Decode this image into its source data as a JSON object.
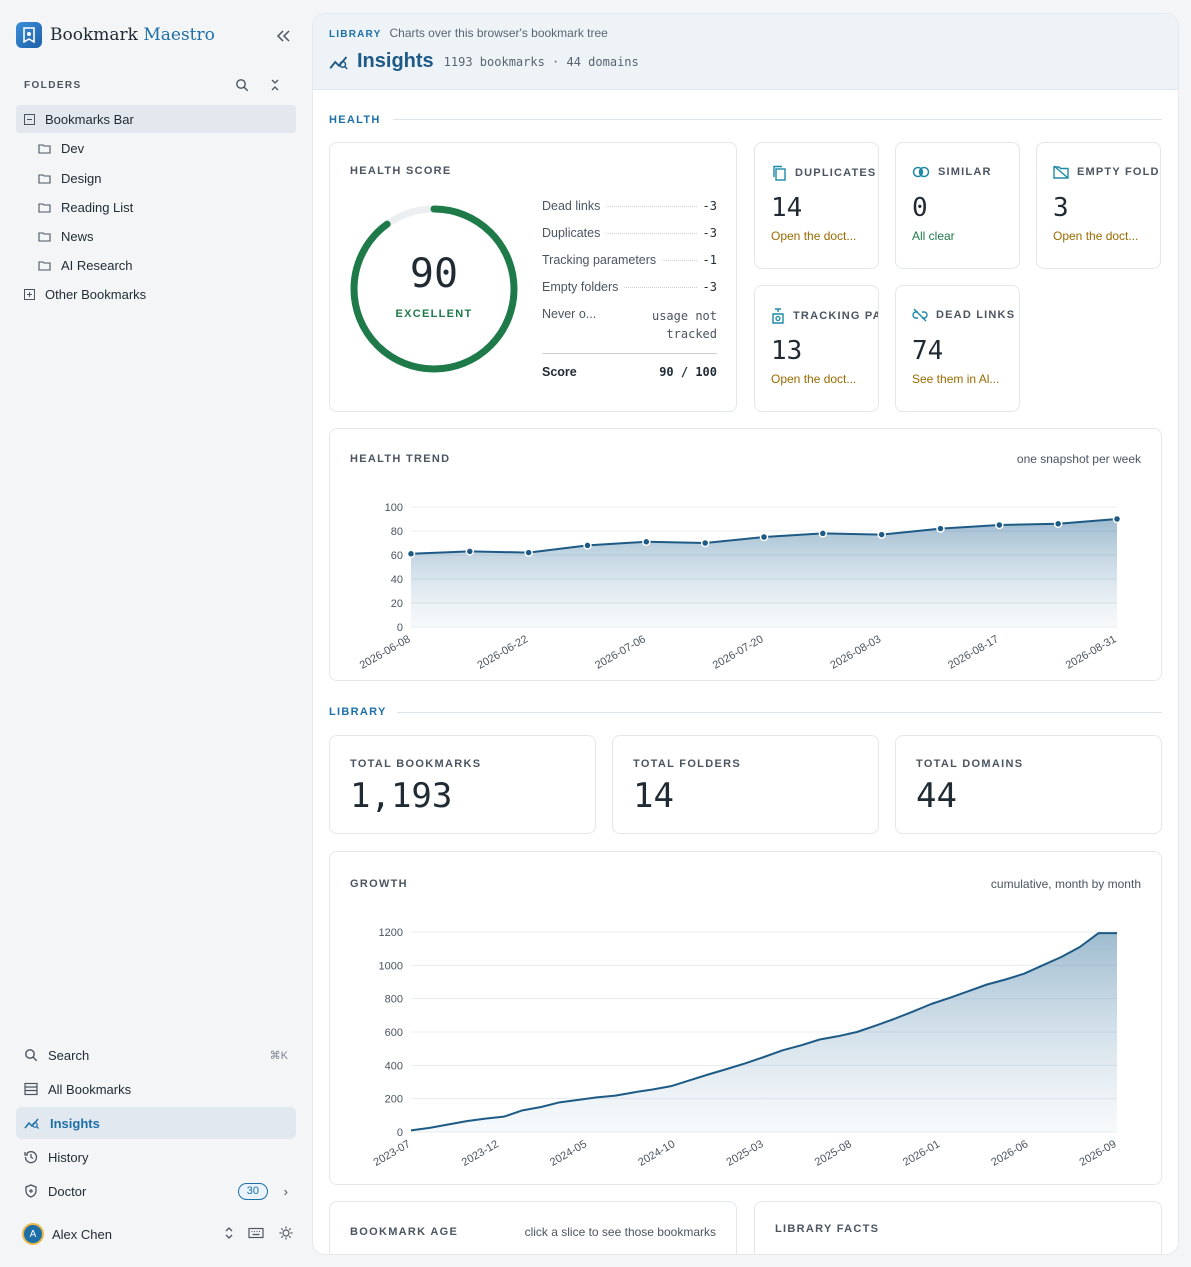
{
  "app": {
    "name_part1": "Bookmark",
    "name_part2": "Maestro"
  },
  "sidebar": {
    "folders_heading": "FOLDERS",
    "tree": [
      {
        "label": "Bookmarks Bar",
        "expanded": true,
        "children": [
          "Dev",
          "Design",
          "Reading List",
          "News",
          "AI Research"
        ]
      },
      {
        "label": "Other Bookmarks",
        "expanded": false
      }
    ],
    "nav": [
      {
        "label": "Search",
        "shortcut": "⌘K"
      },
      {
        "label": "All Bookmarks"
      },
      {
        "label": "Insights",
        "active": true
      },
      {
        "label": "History"
      },
      {
        "label": "Doctor",
        "badge": "30"
      }
    ],
    "user": {
      "initial": "A",
      "name": "Alex Chen"
    }
  },
  "header": {
    "section": "LIBRARY",
    "subtitle": "Charts over this browser's bookmark tree",
    "title": "Insights",
    "meta": "1193 bookmarks · 44 domains"
  },
  "health": {
    "section_title": "HEALTH",
    "score_card": {
      "label": "HEALTH SCORE",
      "score": "90",
      "score_fraction": 0.9,
      "rating": "EXCELLENT",
      "deductions": [
        {
          "name": "Dead links",
          "value": "-3"
        },
        {
          "name": "Duplicates",
          "value": "-3"
        },
        {
          "name": "Tracking parameters",
          "value": "-1"
        },
        {
          "name": "Empty folders",
          "value": "-3"
        }
      ],
      "never_label": "Never o...",
      "never_value_line1": "usage not",
      "never_value_line2": "tracked",
      "total_label": "Score",
      "total_value": "90 / 100"
    },
    "stats": [
      {
        "title": "DUPLICATES",
        "value": "14",
        "link": "Open the doct...",
        "link_color": "#9a6a00",
        "icon": "copy-icon"
      },
      {
        "title": "SIMILAR",
        "value": "0",
        "link": "All clear",
        "link_color": "#1f7a4a",
        "icon": "similar-icon"
      },
      {
        "title": "EMPTY FOLDERS",
        "value": "3",
        "link": "Open the doct...",
        "link_color": "#9a6a00",
        "icon": "empty-folder-icon"
      },
      {
        "title": "TRACKING PARAMS",
        "value": "13",
        "link": "Open the doct...",
        "link_color": "#9a6a00",
        "icon": "tracking-icon"
      },
      {
        "title": "DEAD LINKS",
        "value": "74",
        "link": "See them in Al...",
        "link_color": "#9a6a00",
        "icon": "dead-link-icon"
      }
    ],
    "trend_label": "HEALTH TREND",
    "trend_note": "one snapshot per week"
  },
  "library": {
    "section_title": "LIBRARY",
    "totals": [
      {
        "label": "TOTAL BOOKMARKS",
        "value": "1,193"
      },
      {
        "label": "TOTAL FOLDERS",
        "value": "14"
      },
      {
        "label": "TOTAL DOMAINS",
        "value": "44"
      }
    ],
    "growth_label": "GROWTH",
    "growth_note": "cumulative, month by month",
    "age_label": "BOOKMARK AGE",
    "age_note": "click a slice to see those bookmarks",
    "facts_label": "LIBRARY FACTS"
  },
  "colors": {
    "accent": "#1d6fa8",
    "line": "#1d5a85",
    "good": "#1f7a4a",
    "warn": "#9a6a00"
  },
  "chart_data": [
    {
      "type": "area",
      "title": "HEALTH TREND",
      "x": [
        "2026-06-08",
        "2026-06-15",
        "2026-06-22",
        "2026-06-29",
        "2026-07-06",
        "2026-07-13",
        "2026-07-20",
        "2026-07-27",
        "2026-08-03",
        "2026-08-10",
        "2026-08-17",
        "2026-08-24",
        "2026-08-31"
      ],
      "x_tick_labels": [
        "2026-06-08",
        "2026-06-22",
        "2026-07-06",
        "2026-07-20",
        "2026-08-03",
        "2026-08-17",
        "2026-08-31"
      ],
      "values": [
        61,
        63,
        62,
        68,
        71,
        70,
        75,
        78,
        77,
        82,
        85,
        86,
        90
      ],
      "ylim": [
        0,
        100
      ],
      "y_ticks": [
        0,
        20,
        40,
        60,
        80,
        100
      ],
      "markers": true,
      "grid": true
    },
    {
      "type": "area",
      "title": "GROWTH",
      "x_start": "2023-07",
      "x_end": "2026-09",
      "x_tick_labels": [
        "2023-07",
        "2023-12",
        "2024-05",
        "2024-10",
        "2025-03",
        "2025-08",
        "2026-01",
        "2026-06",
        "2026-09"
      ],
      "values": [
        10,
        25,
        45,
        65,
        80,
        92,
        130,
        150,
        178,
        193,
        208,
        218,
        238,
        255,
        275,
        310,
        345,
        378,
        412,
        450,
        490,
        520,
        555,
        575,
        600,
        638,
        678,
        722,
        768,
        805,
        845,
        885,
        915,
        950,
        1000,
        1050,
        1110,
        1193,
        1193
      ],
      "ylim": [
        0,
        1200
      ],
      "y_ticks": [
        0,
        200,
        400,
        600,
        800,
        1000,
        1200
      ],
      "grid": true
    }
  ]
}
